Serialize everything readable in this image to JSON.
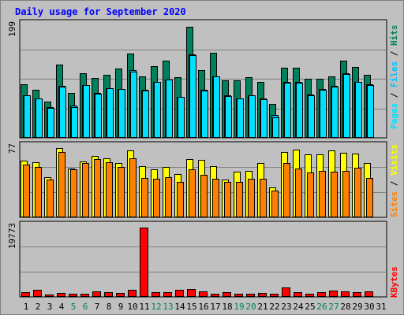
{
  "title": "Daily usage for September 2020",
  "colors": {
    "hits": "#00805c",
    "files": "#00c0ff",
    "pages": "#00e0ff",
    "visits": "#ffff00",
    "sites": "#ff8000",
    "kbytes": "#ff0000",
    "title": "#0000ff",
    "weekend_label": "#00805c",
    "panel_bg": "#c0c0c0"
  },
  "chart_data": [
    {
      "type": "bar",
      "panel": "hits-files-pages",
      "y_max_label": "199",
      "ylim": [
        0,
        199
      ],
      "legend": [
        "Pages",
        "Files",
        "Hits"
      ],
      "categories": [
        "1",
        "2",
        "3",
        "4",
        "5",
        "6",
        "7",
        "8",
        "9",
        "10",
        "11",
        "12",
        "13",
        "14",
        "15",
        "16",
        "17",
        "18",
        "19",
        "20",
        "21",
        "22",
        "23",
        "24",
        "25",
        "26",
        "27",
        "28",
        "29",
        "30",
        "31"
      ],
      "series": [
        {
          "name": "Hits",
          "values": [
            95,
            86,
            64,
            130,
            80,
            115,
            107,
            112,
            123,
            150,
            110,
            127,
            137,
            108,
            198,
            120,
            152,
            102,
            103,
            108,
            100,
            60,
            125,
            125,
            105,
            105,
            110,
            137,
            126,
            112,
            0
          ]
        },
        {
          "name": "Files",
          "values": [
            75,
            70,
            55,
            92,
            57,
            94,
            80,
            88,
            87,
            120,
            85,
            100,
            104,
            73,
            148,
            85,
            110,
            75,
            70,
            76,
            70,
            40,
            100,
            100,
            77,
            87,
            92,
            115,
            100,
            95,
            0
          ]
        },
        {
          "name": "Pages",
          "values": [
            75,
            70,
            53,
            91,
            55,
            94,
            79,
            88,
            87,
            118,
            84,
            100,
            104,
            73,
            147,
            84,
            109,
            74,
            70,
            76,
            69,
            37,
            98,
            98,
            76,
            86,
            91,
            114,
            100,
            94,
            0
          ]
        }
      ]
    },
    {
      "type": "bar",
      "panel": "visits-sites",
      "y_max_label": "77",
      "ylim": [
        0,
        77
      ],
      "legend": [
        "Sites",
        "Visits"
      ],
      "categories": [
        "1",
        "2",
        "3",
        "4",
        "5",
        "6",
        "7",
        "8",
        "9",
        "10",
        "11",
        "12",
        "13",
        "14",
        "15",
        "16",
        "17",
        "18",
        "19",
        "20",
        "21",
        "22",
        "23",
        "24",
        "25",
        "26",
        "27",
        "28",
        "29",
        "30",
        "31"
      ],
      "series": [
        {
          "name": "Visits",
          "values": [
            63,
            61,
            45,
            77,
            54,
            62,
            68,
            66,
            60,
            74,
            57,
            53,
            56,
            48,
            65,
            64,
            57,
            42,
            51,
            52,
            60,
            33,
            73,
            75,
            70,
            70,
            74,
            72,
            71,
            60,
            0
          ]
        },
        {
          "name": "Sites",
          "values": [
            59,
            56,
            42,
            73,
            53,
            60,
            65,
            61,
            56,
            66,
            44,
            43,
            45,
            39,
            53,
            47,
            43,
            39,
            39,
            43,
            43,
            30,
            60,
            54,
            50,
            52,
            51,
            52,
            55,
            44,
            0
          ]
        }
      ]
    },
    {
      "type": "bar",
      "panel": "kbytes",
      "y_max_label": "19773",
      "ylim": [
        0,
        19773
      ],
      "legend": [
        "KBytes"
      ],
      "categories": [
        "1",
        "2",
        "3",
        "4",
        "5",
        "6",
        "7",
        "8",
        "9",
        "10",
        "11",
        "12",
        "13",
        "14",
        "15",
        "16",
        "17",
        "18",
        "19",
        "20",
        "21",
        "22",
        "23",
        "24",
        "25",
        "26",
        "27",
        "28",
        "29",
        "30",
        "31"
      ],
      "series": [
        {
          "name": "KBytes",
          "values": [
            1300,
            2100,
            700,
            1100,
            1000,
            900,
            1500,
            1300,
            1200,
            2000,
            19773,
            1300,
            1300,
            2000,
            2300,
            1500,
            1000,
            1300,
            1000,
            1000,
            1200,
            800,
            2600,
            1400,
            1000,
            1300,
            1800,
            1500,
            1300,
            1500,
            0
          ]
        }
      ]
    }
  ],
  "x_labels": [
    {
      "text": "1",
      "weekend": false
    },
    {
      "text": "2",
      "weekend": false
    },
    {
      "text": "3",
      "weekend": false
    },
    {
      "text": "4",
      "weekend": false
    },
    {
      "text": "5",
      "weekend": true
    },
    {
      "text": "6",
      "weekend": true
    },
    {
      "text": "7",
      "weekend": false
    },
    {
      "text": "8",
      "weekend": false
    },
    {
      "text": "9",
      "weekend": false
    },
    {
      "text": "10",
      "weekend": false
    },
    {
      "text": "11",
      "weekend": false
    },
    {
      "text": "12",
      "weekend": true
    },
    {
      "text": "13",
      "weekend": true
    },
    {
      "text": "14",
      "weekend": false
    },
    {
      "text": "15",
      "weekend": false
    },
    {
      "text": "16",
      "weekend": false
    },
    {
      "text": "17",
      "weekend": false
    },
    {
      "text": "18",
      "weekend": false
    },
    {
      "text": "19",
      "weekend": true
    },
    {
      "text": "20",
      "weekend": true
    },
    {
      "text": "21",
      "weekend": false
    },
    {
      "text": "22",
      "weekend": false
    },
    {
      "text": "23",
      "weekend": false
    },
    {
      "text": "24",
      "weekend": false
    },
    {
      "text": "25",
      "weekend": false
    },
    {
      "text": "26",
      "weekend": true
    },
    {
      "text": "27",
      "weekend": true
    },
    {
      "text": "28",
      "weekend": false
    },
    {
      "text": "29",
      "weekend": false
    },
    {
      "text": "30",
      "weekend": false
    },
    {
      "text": "31",
      "weekend": false
    }
  ],
  "highlight_day": "23"
}
